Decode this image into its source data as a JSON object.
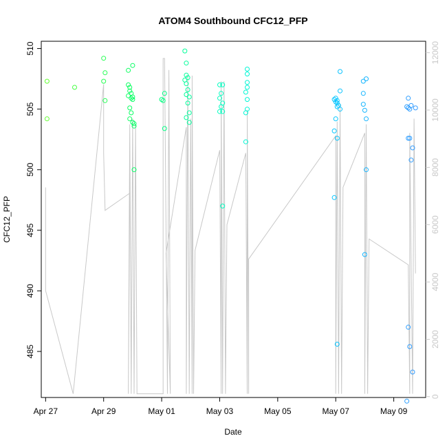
{
  "chart_data": {
    "type": "scatter",
    "title": "ATOM4 Southbound CFC12_PFP",
    "xlabel": "Date",
    "ylabel": "CFC12_PFP",
    "xlim": [
      -0.15,
      13.1
    ],
    "ylim": [
      481.2,
      510.6
    ],
    "y2lim": [
      -30,
      12400
    ],
    "x_ticks": [
      {
        "value": 0,
        "label": "Apr 27"
      },
      {
        "value": 2,
        "label": "Apr 29"
      },
      {
        "value": 4,
        "label": "May 01"
      },
      {
        "value": 6,
        "label": "May 03"
      },
      {
        "value": 8,
        "label": "May 05"
      },
      {
        "value": 10,
        "label": "May 07"
      },
      {
        "value": 12,
        "label": "May 09"
      }
    ],
    "y_ticks": [
      485,
      490,
      495,
      500,
      505,
      510
    ],
    "y2_ticks": [
      0,
      2000,
      4000,
      6000,
      8000,
      10000,
      12000
    ],
    "colors": {
      "line": "#c8c8c8",
      "axis": "#000000",
      "right_axis": "#c8c8c8",
      "point_gradient": [
        "#66ff33",
        "#00ff66",
        "#00ffcc",
        "#00ccff",
        "#3399ff"
      ]
    },
    "points": [
      [
        0.05,
        507.3
      ],
      [
        0.05,
        504.2
      ],
      [
        1.0,
        506.8
      ],
      [
        2.0,
        509.2
      ],
      [
        2.05,
        508.0
      ],
      [
        2.0,
        507.3
      ],
      [
        2.05,
        505.7
      ],
      [
        2.85,
        508.2
      ],
      [
        2.85,
        507.0
      ],
      [
        2.9,
        506.8
      ],
      [
        2.9,
        506.5
      ],
      [
        2.95,
        506.3
      ],
      [
        2.85,
        506.1
      ],
      [
        2.95,
        505.9
      ],
      [
        3.0,
        505.8
      ],
      [
        2.9,
        505.1
      ],
      [
        2.95,
        504.7
      ],
      [
        2.9,
        504.2
      ],
      [
        3.0,
        503.9
      ],
      [
        3.05,
        503.8
      ],
      [
        3.05,
        503.6
      ],
      [
        3.05,
        500.0
      ],
      [
        3.0,
        508.6
      ],
      [
        3.0,
        506.0
      ],
      [
        4.0,
        505.8
      ],
      [
        4.05,
        505.7
      ],
      [
        4.1,
        506.3
      ],
      [
        4.1,
        503.4
      ],
      [
        4.8,
        509.8
      ],
      [
        4.85,
        508.8
      ],
      [
        4.85,
        507.8
      ],
      [
        4.9,
        507.6
      ],
      [
        4.8,
        507.4
      ],
      [
        4.85,
        507.1
      ],
      [
        4.9,
        506.6
      ],
      [
        4.85,
        506.2
      ],
      [
        4.95,
        506.0
      ],
      [
        4.9,
        505.5
      ],
      [
        4.95,
        504.7
      ],
      [
        4.85,
        504.3
      ],
      [
        4.95,
        503.9
      ],
      [
        6.0,
        507.0
      ],
      [
        6.1,
        507.0
      ],
      [
        6.05,
        506.3
      ],
      [
        6.0,
        505.9
      ],
      [
        6.1,
        505.5
      ],
      [
        6.05,
        505.2
      ],
      [
        6.1,
        504.8
      ],
      [
        6.0,
        504.8
      ],
      [
        6.1,
        497.0
      ],
      [
        6.95,
        508.3
      ],
      [
        6.95,
        507.9
      ],
      [
        6.95,
        507.2
      ],
      [
        6.95,
        506.8
      ],
      [
        6.9,
        506.4
      ],
      [
        6.95,
        505.8
      ],
      [
        6.95,
        505.0
      ],
      [
        6.9,
        504.7
      ],
      [
        6.9,
        502.3
      ],
      [
        9.95,
        505.8
      ],
      [
        10.0,
        505.9
      ],
      [
        10.05,
        505.7
      ],
      [
        10.0,
        505.6
      ],
      [
        10.05,
        505.5
      ],
      [
        10.1,
        505.3
      ],
      [
        10.05,
        505.2
      ],
      [
        10.15,
        505.0
      ],
      [
        10.0,
        504.2
      ],
      [
        9.95,
        503.2
      ],
      [
        10.05,
        502.6
      ],
      [
        10.15,
        506.5
      ],
      [
        10.15,
        508.1
      ],
      [
        9.95,
        497.7
      ],
      [
        10.05,
        485.6
      ],
      [
        10.95,
        507.3
      ],
      [
        11.05,
        507.5
      ],
      [
        10.95,
        506.3
      ],
      [
        10.95,
        505.4
      ],
      [
        11.0,
        504.9
      ],
      [
        11.05,
        504.2
      ],
      [
        11.05,
        500.0
      ],
      [
        11.0,
        493.0
      ],
      [
        12.5,
        505.9
      ],
      [
        12.45,
        505.2
      ],
      [
        12.5,
        505.1
      ],
      [
        12.55,
        505.0
      ],
      [
        12.6,
        505.3
      ],
      [
        12.75,
        505.1
      ],
      [
        12.5,
        502.6
      ],
      [
        12.55,
        502.6
      ],
      [
        12.65,
        501.8
      ],
      [
        12.6,
        500.8
      ],
      [
        12.5,
        487.0
      ],
      [
        12.55,
        485.4
      ],
      [
        12.65,
        483.3
      ],
      [
        12.45,
        480.9
      ]
    ],
    "line_y2": [
      [
        0.0,
        7300
      ],
      [
        0.0,
        3700
      ],
      [
        0.95,
        100
      ],
      [
        2.0,
        10900
      ],
      [
        2.0,
        8500
      ],
      [
        2.05,
        6500
      ],
      [
        2.9,
        7100
      ],
      [
        2.85,
        100
      ],
      [
        2.9,
        9500
      ],
      [
        2.95,
        100
      ],
      [
        3.0,
        9700
      ],
      [
        3.05,
        100
      ],
      [
        3.1,
        9500
      ],
      [
        3.15,
        100
      ],
      [
        4.05,
        100
      ],
      [
        4.05,
        11800
      ],
      [
        4.1,
        11800
      ],
      [
        4.2,
        100
      ],
      [
        4.25,
        11400
      ],
      [
        4.3,
        100
      ],
      [
        4.15,
        5000
      ],
      [
        4.85,
        9400
      ],
      [
        4.85,
        100
      ],
      [
        4.9,
        11200
      ],
      [
        4.95,
        100
      ],
      [
        5.0,
        9700
      ],
      [
        5.05,
        100
      ],
      [
        5.05,
        11200
      ],
      [
        5.1,
        100
      ],
      [
        5.15,
        5100
      ],
      [
        6.0,
        8600
      ],
      [
        6.05,
        100
      ],
      [
        6.05,
        11000
      ],
      [
        6.1,
        100
      ],
      [
        6.15,
        11000
      ],
      [
        6.2,
        100
      ],
      [
        6.25,
        6000
      ],
      [
        6.9,
        8500
      ],
      [
        6.95,
        100
      ],
      [
        6.95,
        10000
      ],
      [
        7.0,
        100
      ],
      [
        7.0,
        4800
      ],
      [
        10.0,
        9100
      ],
      [
        10.0,
        100
      ],
      [
        10.05,
        9600
      ],
      [
        10.1,
        100
      ],
      [
        10.15,
        10200
      ],
      [
        10.2,
        100
      ],
      [
        10.25,
        7300
      ],
      [
        11.0,
        9200
      ],
      [
        11.0,
        100
      ],
      [
        11.05,
        9500
      ],
      [
        11.1,
        100
      ],
      [
        11.15,
        5500
      ],
      [
        12.5,
        4600
      ],
      [
        12.55,
        100
      ],
      [
        12.55,
        9200
      ],
      [
        12.65,
        100
      ],
      [
        12.7,
        9700
      ],
      [
        12.75,
        4300
      ]
    ]
  }
}
